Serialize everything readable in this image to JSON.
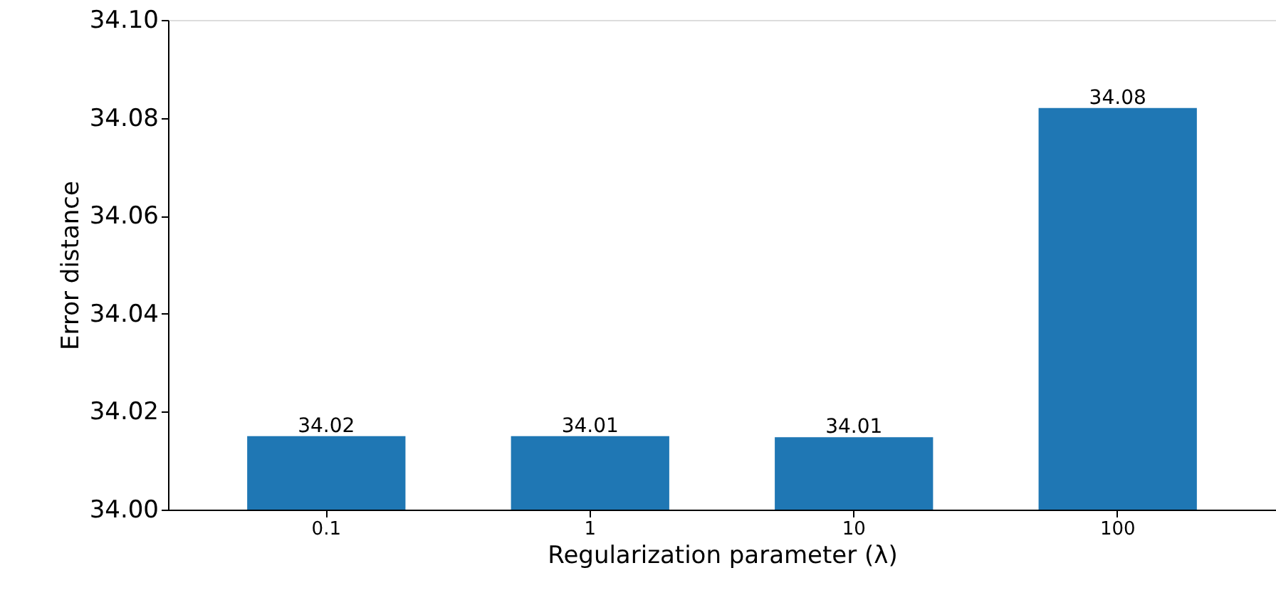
{
  "chart_data": {
    "type": "bar",
    "xlabel": "Regularization parameter (λ)",
    "ylabel": "Error distance",
    "categories": [
      "0.1",
      "1",
      "10",
      "100"
    ],
    "values": [
      34.015,
      34.015,
      34.0148,
      34.082
    ],
    "value_labels": [
      "34.02",
      "34.01",
      "34.01",
      "34.08"
    ],
    "color": "#1f77b4",
    "ylim": [
      34.0,
      34.1
    ],
    "yticks": [
      {
        "value": 34.0,
        "label": "34.00"
      },
      {
        "value": 34.02,
        "label": "34.02"
      },
      {
        "value": 34.04,
        "label": "34.04"
      },
      {
        "value": 34.06,
        "label": "34.06"
      },
      {
        "value": 34.08,
        "label": "34.08"
      },
      {
        "value": 34.1,
        "label": "34.10"
      }
    ],
    "grid": false
  }
}
